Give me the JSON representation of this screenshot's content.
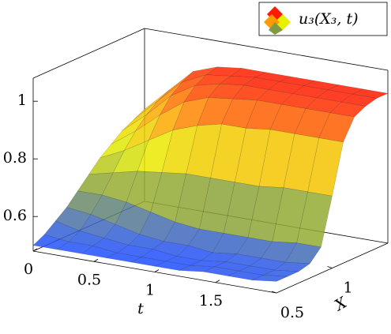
{
  "chart_data": {
    "type": "surface",
    "legend": "u₃(X₃, t)",
    "xlabel": "t",
    "ylabel": "X",
    "x": [
      0,
      0.2,
      0.4,
      0.6,
      0.8,
      1.0,
      1.2,
      1.4,
      1.6,
      1.8,
      2.0
    ],
    "y": [
      0.5,
      0.6,
      0.7,
      0.8,
      0.9,
      1.0,
      1.1,
      1.2,
      1.3,
      1.4,
      1.5
    ],
    "z": [
      [
        0.5,
        0.52,
        0.55,
        0.58,
        0.62,
        0.66,
        0.7,
        0.73,
        0.76,
        0.78,
        0.8
      ],
      [
        0.5,
        0.51,
        0.53,
        0.57,
        0.62,
        0.68,
        0.74,
        0.79,
        0.83,
        0.86,
        0.88
      ],
      [
        0.5,
        0.51,
        0.52,
        0.55,
        0.61,
        0.7,
        0.79,
        0.86,
        0.91,
        0.94,
        0.96
      ],
      [
        0.5,
        0.5,
        0.51,
        0.53,
        0.59,
        0.71,
        0.84,
        0.92,
        0.96,
        0.98,
        0.99
      ],
      [
        0.5,
        0.5,
        0.51,
        0.52,
        0.57,
        0.72,
        0.87,
        0.95,
        0.98,
        0.99,
        1.0
      ],
      [
        0.5,
        0.5,
        0.5,
        0.52,
        0.56,
        0.72,
        0.89,
        0.96,
        0.99,
        1.0,
        1.0
      ],
      [
        0.5,
        0.5,
        0.5,
        0.51,
        0.56,
        0.72,
        0.89,
        0.97,
        0.99,
        1.0,
        1.0
      ],
      [
        0.51,
        0.51,
        0.51,
        0.52,
        0.56,
        0.72,
        0.9,
        0.97,
        0.99,
        1.0,
        1.0
      ],
      [
        0.51,
        0.51,
        0.51,
        0.52,
        0.56,
        0.73,
        0.9,
        0.97,
        0.99,
        1.0,
        1.0
      ],
      [
        0.51,
        0.51,
        0.51,
        0.52,
        0.57,
        0.73,
        0.9,
        0.97,
        0.99,
        1.0,
        1.0
      ],
      [
        0.52,
        0.52,
        0.52,
        0.53,
        0.57,
        0.73,
        0.9,
        0.97,
        0.99,
        1.0,
        1.0
      ]
    ],
    "xlim": [
      0,
      2
    ],
    "ylim": [
      0.5,
      1.5
    ],
    "zlim": [
      0.48,
      1.08
    ],
    "xticks": [
      0,
      0.5,
      1,
      1.5
    ],
    "yticks": [
      0.5,
      1
    ],
    "zticks": [
      0.6,
      0.8,
      1
    ],
    "colormap": [
      "#1f4fff",
      "#7f9a40",
      "#e8f000",
      "#ff9a00",
      "#ff1a00"
    ],
    "opacity": 0.85
  }
}
